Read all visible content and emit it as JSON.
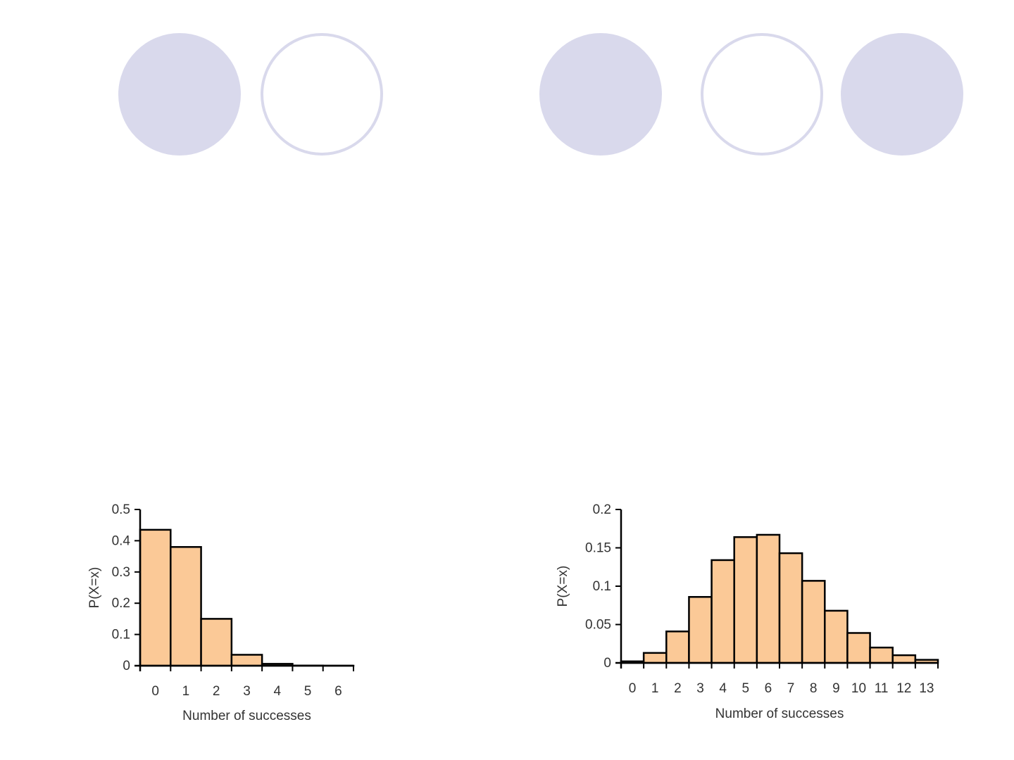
{
  "slide": {
    "decorative_circles": [
      {
        "style": "filled"
      },
      {
        "style": "outline"
      },
      {
        "style": "filled"
      },
      {
        "style": "outline"
      },
      {
        "style": "filled"
      }
    ],
    "circle_color": "#d9d9ec"
  },
  "chart_data": [
    {
      "type": "bar",
      "categories": [
        "0",
        "1",
        "2",
        "3",
        "4",
        "5",
        "6"
      ],
      "values": [
        0.435,
        0.38,
        0.15,
        0.035,
        0.006,
        0.0005,
        0.0001
      ],
      "xlabel": "Number of successes",
      "ylabel": "P(X=x)",
      "ylim": [
        0,
        0.5
      ],
      "yticks": [
        "0",
        "0.1",
        "0.2",
        "0.3",
        "0.4",
        "0.5"
      ],
      "yticks_values": [
        0,
        0.1,
        0.2,
        0.3,
        0.4,
        0.5
      ],
      "bar_color": "#fbc997",
      "grid": false,
      "legend": "none"
    },
    {
      "type": "bar",
      "categories": [
        "0",
        "1",
        "2",
        "3",
        "4",
        "5",
        "6",
        "7",
        "8",
        "9",
        "10",
        "11",
        "12",
        "13"
      ],
      "values": [
        0.002,
        0.013,
        0.041,
        0.086,
        0.134,
        0.164,
        0.167,
        0.143,
        0.107,
        0.068,
        0.039,
        0.02,
        0.01,
        0.004
      ],
      "xlabel": "Number of successes",
      "ylabel": "P(X=x)",
      "ylim": [
        0,
        0.2
      ],
      "yticks": [
        "0",
        "0.05",
        "0.1",
        "0.15",
        "0.2"
      ],
      "yticks_values": [
        0,
        0.05,
        0.1,
        0.15,
        0.2
      ],
      "bar_color": "#fbc997",
      "grid": false,
      "legend": "none"
    }
  ]
}
